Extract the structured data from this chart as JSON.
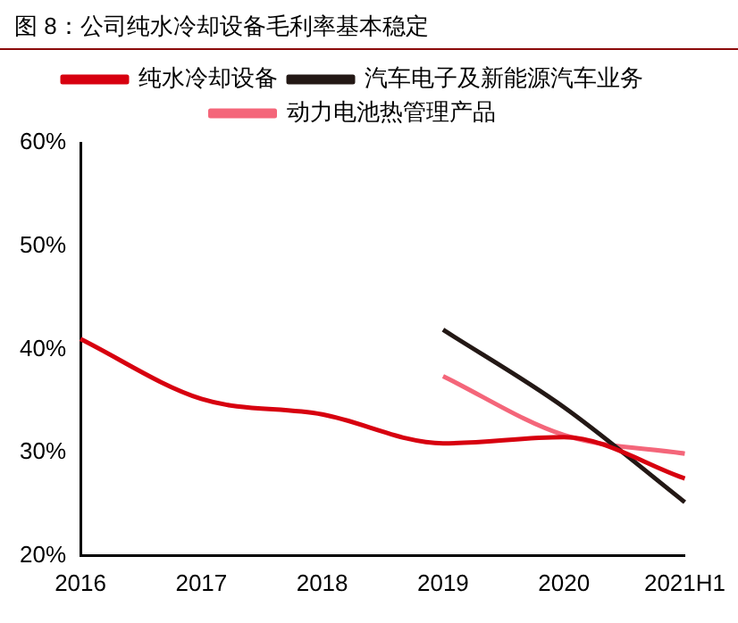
{
  "chart_data": {
    "type": "line",
    "title": "图 8：公司纯水冷却设备毛利率基本稳定",
    "categories": [
      "2016",
      "2017",
      "2018",
      "2019",
      "2020",
      "2021H1"
    ],
    "series": [
      {
        "name": "纯水冷却设备",
        "color": "#d7000f",
        "values": [
          41.0,
          35.2,
          33.7,
          30.9,
          31.5,
          27.5
        ]
      },
      {
        "name": "汽车电子及新能源汽车业务",
        "color": "#231815",
        "values": [
          null,
          null,
          null,
          41.9,
          34.4,
          25.2
        ]
      },
      {
        "name": "动力电池热管理产品",
        "color": "#f4667a",
        "values": [
          null,
          null,
          null,
          37.4,
          31.7,
          29.9
        ]
      }
    ],
    "ylim": [
      20,
      60
    ],
    "yticks": [
      {
        "value": 20,
        "label": "20%"
      },
      {
        "value": 30,
        "label": "30%"
      },
      {
        "value": 40,
        "label": "40%"
      },
      {
        "value": 50,
        "label": "50%"
      },
      {
        "value": 60,
        "label": "60%"
      }
    ],
    "grid": false,
    "legend": "top",
    "marker": "none",
    "line_style": "solid"
  }
}
